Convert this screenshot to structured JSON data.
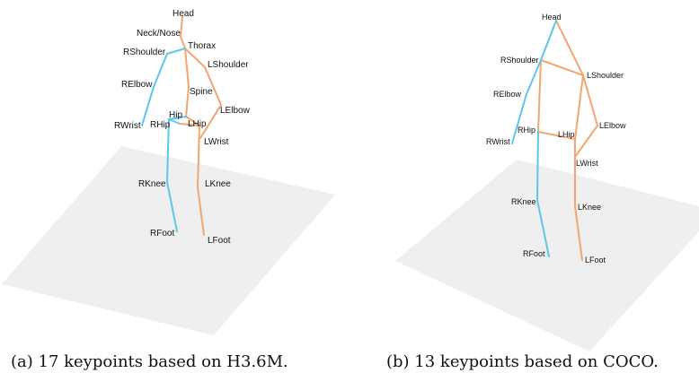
{
  "colors": {
    "right_side": "#5ac8ee",
    "left_side": "#f4a56e",
    "floor": "#efefef"
  },
  "figure_a": {
    "caption": "(a) 17 keypoints based on H3.6M.",
    "labels": {
      "head": "Head",
      "neck": "Neck/Nose",
      "thorax": "Thorax",
      "rshoulder": "RShoulder",
      "lshoulder": "LShoulder",
      "relbow": "RElbow",
      "spine": "Spine",
      "lelbow": "LElbow",
      "hip": "Hip",
      "rwrist": "RWrist",
      "rhip": "RHip",
      "lhip": "LHip",
      "lwrist": "LWrist",
      "rknee": "RKnee",
      "lknee": "LKnee",
      "rfoot": "RFoot",
      "lfoot": "LFoot"
    }
  },
  "figure_b": {
    "caption": "(b) 13 keypoints based on COCO.",
    "labels": {
      "head": "Head",
      "rshoulder": "RShoulder",
      "lshoulder": "LShoulder",
      "relbow": "RElbow",
      "rwrist": "RWrist",
      "rhip": "RHip",
      "lhip": "LHip",
      "lelbow": "LElbow",
      "lwrist": "LWrist",
      "rknee": "RKnee",
      "lknee": "LKnee",
      "rfoot": "RFoot",
      "lfoot": "LFoot"
    }
  }
}
